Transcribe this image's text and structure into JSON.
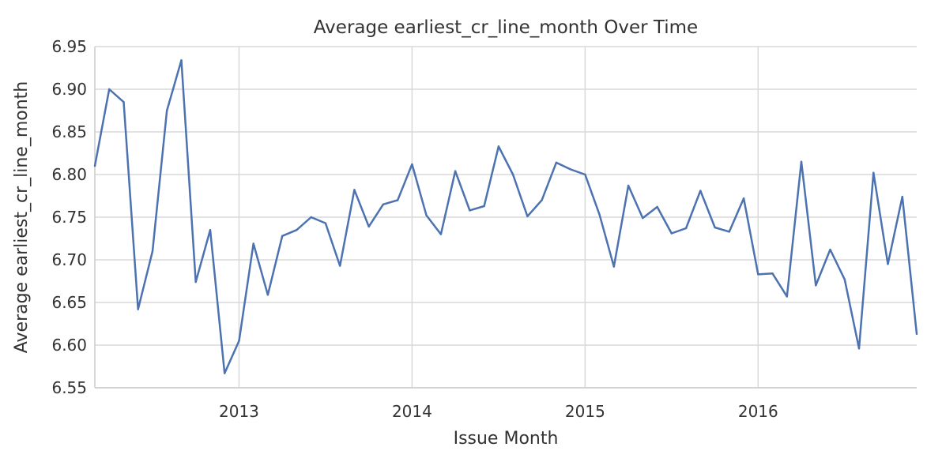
{
  "chart_data": {
    "type": "line",
    "title": "Average earliest_cr_line_month Over Time",
    "xlabel": "Issue Month",
    "ylabel": "Average earliest_cr_line_month",
    "xlim": [
      "2012-03",
      "2016-12"
    ],
    "ylim": [
      6.55,
      6.95
    ],
    "x_ticks": [
      "2013-01",
      "2014-01",
      "2015-01",
      "2016-01"
    ],
    "x_tick_labels": [
      "2013",
      "2014",
      "2015",
      "2016"
    ],
    "y_ticks": [
      6.55,
      6.6,
      6.65,
      6.7,
      6.75,
      6.8,
      6.85,
      6.9,
      6.95
    ],
    "y_tick_labels": [
      "6.55",
      "6.60",
      "6.65",
      "6.70",
      "6.75",
      "6.80",
      "6.85",
      "6.90",
      "6.95"
    ],
    "grid": true,
    "colors": {
      "line": "#4c72b0",
      "grid": "#d9d9d9",
      "axes": "#cccccc"
    },
    "series": [
      {
        "x": [
          "2012-03",
          "2012-04",
          "2012-05",
          "2012-06",
          "2012-07",
          "2012-08",
          "2012-09",
          "2012-10",
          "2012-11",
          "2012-12",
          "2013-01",
          "2013-02",
          "2013-03",
          "2013-04",
          "2013-05",
          "2013-06",
          "2013-07",
          "2013-08",
          "2013-09",
          "2013-10",
          "2013-11",
          "2013-12",
          "2014-01",
          "2014-02",
          "2014-03",
          "2014-04",
          "2014-05",
          "2014-06",
          "2014-07",
          "2014-08",
          "2014-09",
          "2014-10",
          "2014-11",
          "2014-12",
          "2015-01",
          "2015-02",
          "2015-03",
          "2015-04",
          "2015-05",
          "2015-06",
          "2015-07",
          "2015-08",
          "2015-09",
          "2015-10",
          "2015-11",
          "2015-12",
          "2016-01",
          "2016-02",
          "2016-03",
          "2016-04",
          "2016-05",
          "2016-06",
          "2016-07",
          "2016-08",
          "2016-09",
          "2016-10",
          "2016-11",
          "2016-12"
        ],
        "values": [
          6.81,
          6.9,
          6.885,
          6.642,
          6.71,
          6.875,
          6.934,
          6.674,
          6.735,
          6.567,
          6.605,
          6.719,
          6.659,
          6.728,
          6.735,
          6.75,
          6.743,
          6.693,
          6.782,
          6.739,
          6.765,
          6.77,
          6.812,
          6.752,
          6.73,
          6.804,
          6.758,
          6.763,
          6.833,
          6.8,
          6.751,
          6.77,
          6.814,
          6.806,
          6.8,
          6.753,
          6.692,
          6.787,
          6.749,
          6.762,
          6.731,
          6.737,
          6.781,
          6.738,
          6.733,
          6.772,
          6.683,
          6.684,
          6.657,
          6.815,
          6.67,
          6.712,
          6.677,
          6.596,
          6.802,
          6.695,
          6.774,
          6.613
        ]
      }
    ]
  }
}
